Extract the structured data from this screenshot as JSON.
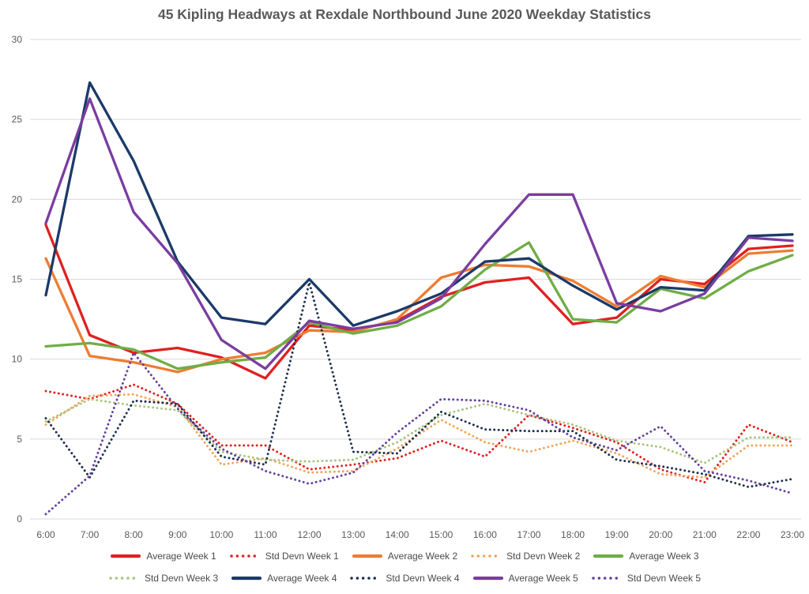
{
  "title": "45 Kipling Headways at Rexdale Northbound June 2020 Weekday Statistics",
  "chart_data": {
    "type": "line",
    "x": [
      "6:00",
      "7:00",
      "8:00",
      "9:00",
      "10:00",
      "11:00",
      "12:00",
      "13:00",
      "14:00",
      "15:00",
      "16:00",
      "17:00",
      "18:00",
      "19:00",
      "20:00",
      "21:00",
      "22:00",
      "23:00"
    ],
    "ylim": [
      0,
      30
    ],
    "yticks": [
      0,
      5,
      10,
      15,
      20,
      25,
      30
    ],
    "grid": "horizontal",
    "gridline_color": "#d9d9d9",
    "axis_text_color": "#595959",
    "legend_position": "bottom",
    "series": [
      {
        "name": "Average Week 1",
        "style": "solid",
        "color": "#e02020",
        "values": [
          18.4,
          11.5,
          10.4,
          10.7,
          10.1,
          8.8,
          12.1,
          11.8,
          12.4,
          13.9,
          14.8,
          15.1,
          12.2,
          12.6,
          15.0,
          14.7,
          16.9,
          17.1
        ]
      },
      {
        "name": "Std Devn Week 1",
        "style": "dotted",
        "color": "#e02020",
        "values": [
          8.0,
          7.5,
          8.4,
          7.2,
          4.6,
          4.6,
          3.1,
          3.4,
          3.8,
          4.9,
          3.9,
          6.5,
          5.7,
          4.8,
          3.1,
          2.3,
          5.9,
          4.8
        ]
      },
      {
        "name": "Average Week 2",
        "style": "solid",
        "color": "#ed7d31",
        "values": [
          16.3,
          10.2,
          9.8,
          9.2,
          10.0,
          10.4,
          11.8,
          11.7,
          12.5,
          15.1,
          15.9,
          15.8,
          14.9,
          13.3,
          15.2,
          14.5,
          16.6,
          16.8
        ]
      },
      {
        "name": "Std Devn Week 2",
        "style": "dotted",
        "color": "#f1a55a",
        "values": [
          5.9,
          7.7,
          7.8,
          7.0,
          3.4,
          3.8,
          2.9,
          3.0,
          4.4,
          6.2,
          4.8,
          4.2,
          4.9,
          4.1,
          2.8,
          2.6,
          4.6,
          4.6
        ]
      },
      {
        "name": "Average Week 3",
        "style": "solid",
        "color": "#70ad47",
        "values": [
          10.8,
          11.0,
          10.6,
          9.4,
          9.8,
          10.1,
          12.3,
          11.6,
          12.1,
          13.3,
          15.6,
          17.3,
          12.5,
          12.3,
          14.4,
          13.8,
          15.5,
          16.5
        ]
      },
      {
        "name": "Std Devn Week 3",
        "style": "dotted",
        "color": "#a6c47f",
        "values": [
          6.1,
          7.5,
          7.1,
          6.8,
          4.2,
          3.7,
          3.6,
          3.7,
          4.8,
          6.5,
          7.2,
          6.5,
          5.9,
          4.9,
          4.5,
          3.5,
          5.1,
          5.1
        ]
      },
      {
        "name": "Average Week 4",
        "style": "solid",
        "color": "#1b3a68",
        "values": [
          14.0,
          27.3,
          22.4,
          16.1,
          12.6,
          12.2,
          15.0,
          12.1,
          13.0,
          14.1,
          16.1,
          16.3,
          14.6,
          13.1,
          14.5,
          14.3,
          17.7,
          17.8
        ]
      },
      {
        "name": "Std Devn Week 4",
        "style": "dotted",
        "color": "#1d2f4f",
        "values": [
          6.3,
          2.6,
          7.4,
          7.2,
          3.9,
          3.4,
          14.8,
          4.2,
          4.1,
          6.7,
          5.6,
          5.5,
          5.5,
          3.7,
          3.3,
          2.8,
          2.0,
          2.5
        ]
      },
      {
        "name": "Average Week 5",
        "style": "solid",
        "color": "#7a3da0",
        "values": [
          18.5,
          26.3,
          19.2,
          16.0,
          11.2,
          9.4,
          12.4,
          11.9,
          12.3,
          13.8,
          17.2,
          20.3,
          20.3,
          13.5,
          13.0,
          14.1,
          17.6,
          17.4
        ]
      },
      {
        "name": "Std Devn Week 5",
        "style": "dotted",
        "color": "#63419c",
        "values": [
          0.3,
          2.7,
          10.4,
          6.9,
          4.4,
          3.0,
          2.2,
          2.9,
          5.4,
          7.5,
          7.4,
          6.8,
          5.1,
          4.3,
          5.8,
          3.0,
          2.4,
          1.6
        ]
      }
    ],
    "legend_rows": [
      [
        0,
        1,
        2,
        3,
        4
      ],
      [
        5,
        6,
        7,
        8,
        9
      ]
    ]
  }
}
